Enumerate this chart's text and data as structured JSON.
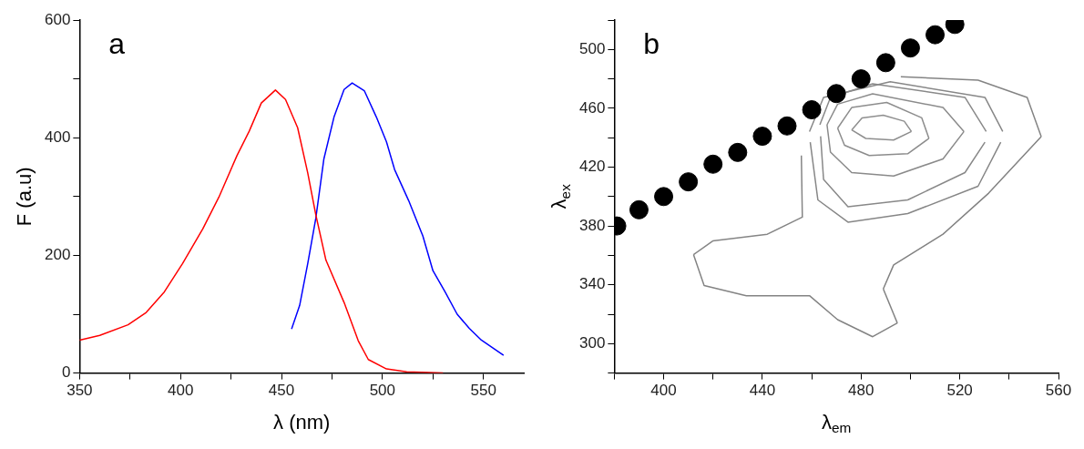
{
  "chart_data": [
    {
      "type": "line",
      "xlabel": "λ (nm)",
      "ylabel": "F (a.u)",
      "annotations": [
        "a"
      ],
      "xlim": [
        350,
        570
      ],
      "ylim": [
        0,
        600
      ],
      "xticks": [
        350,
        {
          "value": 375,
          "label": null
        },
        400,
        {
          "value": 425,
          "label": null
        },
        450,
        {
          "value": 475,
          "label": null
        },
        500,
        {
          "value": 525,
          "label": null
        },
        550
      ],
      "yticks": [
        0,
        {
          "value": 100,
          "label": null
        },
        200,
        {
          "value": 300,
          "label": null
        },
        400,
        {
          "value": 500,
          "label": null
        },
        600
      ],
      "series": [
        {
          "color": "#ff0000",
          "x": [
            350,
            360,
            374,
            383,
            392,
            401,
            411,
            419,
            428,
            434,
            440,
            447,
            452,
            458,
            463,
            467,
            472,
            481,
            488,
            493,
            502,
            512,
            530
          ],
          "values": [
            56,
            64,
            82,
            103,
            138,
            186,
            245,
            299,
            370,
            411,
            459,
            481,
            465,
            417,
            340,
            269,
            192,
            120,
            55,
            23,
            7,
            2,
            0
          ]
        },
        {
          "color": "#0000ff",
          "x": [
            455,
            459,
            463,
            467,
            471,
            476,
            481,
            485,
            491,
            497,
            502,
            506,
            513,
            520,
            525,
            531,
            537,
            543,
            549,
            560
          ],
          "values": [
            75,
            115,
            186,
            263,
            364,
            435,
            482,
            493,
            480,
            435,
            393,
            346,
            293,
            233,
            174,
            138,
            100,
            76,
            56,
            30
          ]
        }
      ]
    },
    {
      "type": "line",
      "xlabel": "λ$_{em}$",
      "ylabel": "λ$_{ex}$",
      "annotations": [
        "b"
      ],
      "xlim": [
        380,
        560
      ],
      "ylim": [
        280,
        520
      ],
      "xticks": [
        {
          "value": 380,
          "label": null
        },
        400,
        {
          "value": 420,
          "label": null
        },
        440,
        {
          "value": 460,
          "label": null
        },
        480,
        {
          "value": 500,
          "label": null
        },
        520,
        {
          "value": 540,
          "label": null
        },
        560
      ],
      "yticks": [
        {
          "value": 280,
          "label": null
        },
        300,
        {
          "value": 320,
          "label": null
        },
        340,
        {
          "value": 360,
          "label": null
        },
        380,
        {
          "value": 400,
          "label": null
        },
        420,
        {
          "value": 440,
          "label": null
        },
        460,
        {
          "value": 480,
          "label": null
        },
        500,
        {
          "value": 520,
          "label": null
        }
      ],
      "series": [
        {
          "type": "scatter",
          "marker": "circle",
          "color": "#000000",
          "x": [
            381,
            390,
            400,
            410,
            420,
            430,
            440,
            450,
            460,
            470,
            480,
            490,
            500,
            510,
            518
          ],
          "values": [
            380,
            391,
            400,
            410,
            422,
            430,
            441,
            448,
            459,
            470,
            480,
            491,
            501,
            510,
            517
          ]
        },
        {
          "color": "#8f8f8f",
          "x": [
            476.2,
            480.4,
            489.0,
            497.5,
            500.4
          ],
          "values": [
            445.3,
            453.5,
            455.3,
            451.2,
            444.2
          ]
        },
        {
          "color": "#8e8e8e",
          "x": [
            476.2,
            481.9,
            493.2,
            500.4
          ],
          "values": [
            445.3,
            439.5,
            438.4,
            444.2
          ]
        },
        {
          "color": "#8d8d8d",
          "x": [
            470.5,
            476.2,
            490.4,
            504.6,
            507.5
          ],
          "values": [
            446.5,
            460.5,
            464.0,
            453.5,
            439.5
          ]
        },
        {
          "color": "#8c8c8c",
          "x": [
            470.5,
            473.3,
            483.3,
            498.9,
            507.5
          ],
          "values": [
            446.5,
            434.9,
            427.9,
            429.1,
            439.5
          ]
        },
        {
          "color": "#8b8b8b",
          "x": [
            466.2,
            470.5,
            484.7,
            513.2,
            521.7
          ],
          "values": [
            448.8,
            462.8,
            469.8,
            460.5,
            444.2
          ]
        },
        {
          "color": "#8a8a8a",
          "x": [
            466.2,
            467.6,
            476.2,
            493.2,
            513.2,
            521.7
          ],
          "values": [
            448.8,
            430.2,
            416.3,
            414.0,
            425.6,
            444.2
          ]
        },
        {
          "color": "#898989",
          "x": [
            463.3,
            467.6,
            484.7,
            522.1,
            530.7
          ],
          "values": [
            448.8,
            467.4,
            476.7,
            467.4,
            444.2
          ]
        },
        {
          "color": "#888888",
          "x": [
            463.6,
            464.8,
            474.7,
            498.9,
            522.1,
            530.2
          ],
          "values": [
            441.0,
            411.6,
            393.0,
            397.7,
            416.3,
            437.0
          ]
        },
        {
          "color": "#878787",
          "x": [
            459.1,
            464.8,
            491.8,
            530.2,
            537.4
          ],
          "values": [
            444.2,
            467.4,
            478.0,
            467.4,
            444.2
          ]
        },
        {
          "color": "#868686",
          "x": [
            459.4,
            462.5,
            474.7,
            498.9,
            527.4,
            536.6
          ],
          "values": [
            437.0,
            397.7,
            382.6,
            388.4,
            407.0,
            437.0
          ]
        },
        {
          "color": "#858585",
          "x": [
            412.1,
            419.9,
            442.0,
            456.2,
            455.8
          ],
          "values": [
            360.5,
            369.8,
            374.4,
            386.0,
            427.9
          ]
        },
        {
          "color": "#848484",
          "x": [
            496.1,
            527.4,
            547.3,
            553.0
          ],
          "values": [
            481.4,
            479.1,
            467.4,
            440.7
          ]
        },
        {
          "color": "#838383",
          "x": [
            412.1,
            416.4,
            433.5,
            459.1,
            470.5,
            484.7,
            494.7
          ],
          "values": [
            360.5,
            339.5,
            332.6,
            332.6,
            316.3,
            304.7,
            314.0
          ]
        },
        {
          "color": "#828282",
          "x": [
            489.0,
            493.2,
            513.2,
            531.7,
            553.0
          ],
          "values": [
            337.2,
            353.5,
            374.4,
            402.3,
            440.7
          ]
        },
        {
          "color": "#818181",
          "x": [
            489.0,
            494.7
          ],
          "values": [
            337.2,
            314.0
          ]
        }
      ]
    }
  ]
}
